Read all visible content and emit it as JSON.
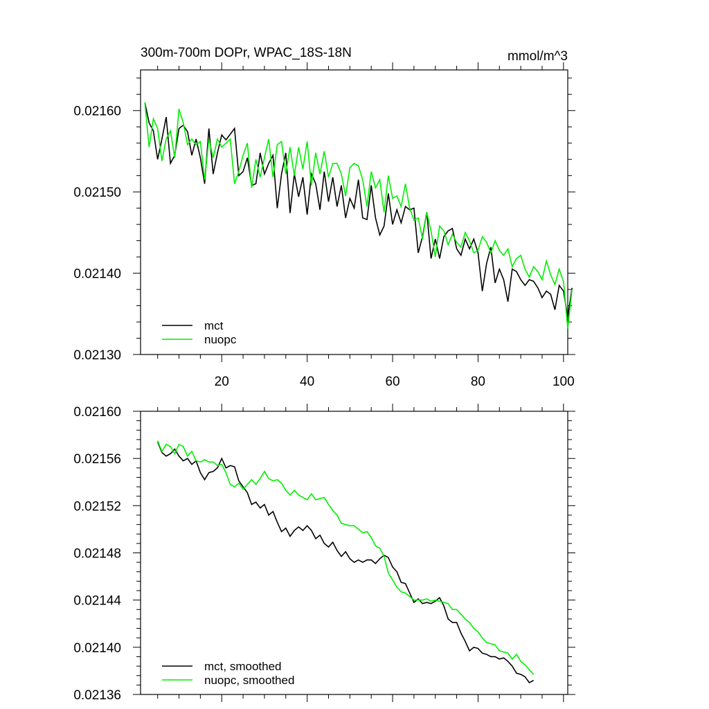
{
  "figure": {
    "title_left": "300m-700m DOPr, WPAC_18S-18N",
    "title_right": "mmol/m^3"
  },
  "colors": {
    "mct": "#000000",
    "nuopc": "#00ee00"
  },
  "chart_data": [
    {
      "type": "line",
      "title": "300m-700m DOPr, WPAC_18S-18N",
      "units": "mmol/m^3",
      "xlim": [
        1,
        101
      ],
      "ylim": [
        0.0213,
        0.02165
      ],
      "xticks": [
        20,
        40,
        60,
        80,
        100
      ],
      "xtick_labels": [
        "20",
        "40",
        "60",
        "80",
        "100"
      ],
      "yticks": [
        0.0213,
        0.0214,
        0.0215,
        0.0216
      ],
      "ytick_labels": [
        "0.02130",
        "0.02140",
        "0.02150",
        "0.02160"
      ],
      "legend_position": "bottom-left",
      "x_start": 2,
      "series": [
        {
          "name": "mct",
          "color": "#000000",
          "values": [
            0.02161,
            0.021585,
            0.021575,
            0.02154,
            0.021565,
            0.021592,
            0.021535,
            0.021545,
            0.021578,
            0.021582,
            0.021574,
            0.021545,
            0.021565,
            0.021542,
            0.02151,
            0.021578,
            0.021522,
            0.021548,
            0.02157,
            0.021564,
            0.021571,
            0.021578,
            0.02152,
            0.021525,
            0.021542,
            0.021508,
            0.02151,
            0.021548,
            0.021522,
            0.021535,
            0.021545,
            0.02148,
            0.021522,
            0.021548,
            0.021474,
            0.021522,
            0.021494,
            0.021518,
            0.021472,
            0.021522,
            0.02151,
            0.021478,
            0.021525,
            0.021488,
            0.021518,
            0.021482,
            0.021508,
            0.021468,
            0.021492,
            0.02148,
            0.021515,
            0.021468,
            0.021466,
            0.021508,
            0.021468,
            0.021447,
            0.021458,
            0.021498,
            0.02146,
            0.021478,
            0.021462,
            0.021482,
            0.021478,
            0.02148,
            0.021425,
            0.021445,
            0.021475,
            0.021418,
            0.021442,
            0.021418,
            0.021445,
            0.021452,
            0.021455,
            0.02143,
            0.021422,
            0.021442,
            0.02143,
            0.021442,
            0.021425,
            0.021378,
            0.021412,
            0.021432,
            0.021388,
            0.021405,
            0.021392,
            0.021365,
            0.021405,
            0.021402,
            0.021392,
            0.021385,
            0.021392,
            0.02139,
            0.021382,
            0.02137,
            0.021378,
            0.021374,
            0.021355,
            0.021385,
            0.021378,
            0.021346,
            0.021382
          ]
        },
        {
          "name": "nuopc",
          "color": "#00ee00",
          "values": [
            0.02161,
            0.021555,
            0.02159,
            0.021578,
            0.021538,
            0.021565,
            0.021575,
            0.021542,
            0.021602,
            0.021585,
            0.021558,
            0.021565,
            0.021558,
            0.021562,
            0.021515,
            0.021565,
            0.021542,
            0.021565,
            0.021555,
            0.02156,
            0.021565,
            0.02151,
            0.021525,
            0.021545,
            0.02156,
            0.021505,
            0.02154,
            0.021518,
            0.021542,
            0.021565,
            0.021518,
            0.021558,
            0.021562,
            0.021522,
            0.021555,
            0.02152,
            0.021555,
            0.021528,
            0.021562,
            0.021508,
            0.021548,
            0.021522,
            0.02155,
            0.021518,
            0.021535,
            0.021535,
            0.021522,
            0.021495,
            0.02153,
            0.021535,
            0.021532,
            0.021515,
            0.021482,
            0.021525,
            0.021505,
            0.021515,
            0.021475,
            0.02152,
            0.021492,
            0.021495,
            0.021482,
            0.02151,
            0.02148,
            0.021465,
            0.021468,
            0.021442,
            0.021475,
            0.021452,
            0.02142,
            0.021458,
            0.021452,
            0.021435,
            0.021448,
            0.021438,
            0.021432,
            0.02145,
            0.02144,
            0.021425,
            0.021428,
            0.021445,
            0.021438,
            0.021425,
            0.02144,
            0.021428,
            0.021422,
            0.02143,
            0.021408,
            0.021418,
            0.021422,
            0.021405,
            0.021395,
            0.021408,
            0.021402,
            0.021392,
            0.021415,
            0.021398,
            0.021386,
            0.021405,
            0.02139,
            0.021332,
            0.02138
          ]
        }
      ]
    },
    {
      "type": "line",
      "title": "",
      "xlim": [
        1,
        101
      ],
      "ylim": [
        0.02136,
        0.0216
      ],
      "xticks": [
        20,
        40,
        60,
        80,
        100
      ],
      "xtick_labels": [],
      "yticks": [
        0.02136,
        0.0214,
        0.02144,
        0.02148,
        0.02152,
        0.02156,
        0.0216
      ],
      "ytick_labels": [
        "0.02136",
        "0.02140",
        "0.02144",
        "0.02148",
        "0.02152",
        "0.02156",
        "0.02160"
      ],
      "legend_position": "bottom-left",
      "x_start": 5,
      "series": [
        {
          "name": "mct, smoothed",
          "color": "#000000",
          "values": [
            0.021574,
            0.021565,
            0.021562,
            0.021564,
            0.021568,
            0.021562,
            0.021558,
            0.02156,
            0.021555,
            0.021558,
            0.021548,
            0.021542,
            0.021548,
            0.021549,
            0.021552,
            0.02156,
            0.021552,
            0.021554,
            0.021553,
            0.021541,
            0.021536,
            0.021531,
            0.021521,
            0.021523,
            0.021518,
            0.021521,
            0.021512,
            0.021515,
            0.021506,
            0.021498,
            0.021501,
            0.021494,
            0.021499,
            0.021502,
            0.021499,
            0.021503,
            0.021499,
            0.021492,
            0.021495,
            0.021488,
            0.021485,
            0.021489,
            0.021482,
            0.021477,
            0.021481,
            0.021475,
            0.021472,
            0.021474,
            0.021472,
            0.021474,
            0.021474,
            0.021471,
            0.021475,
            0.021478,
            0.021476,
            0.021468,
            0.021464,
            0.021455,
            0.021454,
            0.021446,
            0.021438,
            0.021441,
            0.021437,
            0.021438,
            0.021437,
            0.021439,
            0.021442,
            0.021435,
            0.021424,
            0.021421,
            0.021421,
            0.021412,
            0.021405,
            0.021397,
            0.0214,
            0.021399,
            0.021395,
            0.021394,
            0.021392,
            0.021392,
            0.02139,
            0.021391,
            0.021388,
            0.021384,
            0.021378,
            0.021377,
            0.021375,
            0.02137,
            0.021372
          ]
        },
        {
          "name": "nuopc, smoothed",
          "color": "#00ee00",
          "values": [
            0.021575,
            0.021566,
            0.021572,
            0.02157,
            0.021564,
            0.021572,
            0.02157,
            0.021562,
            0.021566,
            0.021558,
            0.021557,
            0.021559,
            0.021557,
            0.021557,
            0.021554,
            0.021555,
            0.021548,
            0.021538,
            0.021536,
            0.021539,
            0.021534,
            0.021538,
            0.021542,
            0.021538,
            0.021543,
            0.021549,
            0.021543,
            0.021541,
            0.021542,
            0.021539,
            0.021533,
            0.021529,
            0.021533,
            0.021529,
            0.021527,
            0.021525,
            0.02153,
            0.021525,
            0.021526,
            0.021527,
            0.021521,
            0.021516,
            0.021512,
            0.021505,
            0.021504,
            0.021503,
            0.021503,
            0.0215,
            0.021497,
            0.021498,
            0.021493,
            0.021486,
            0.021484,
            0.021477,
            0.021463,
            0.021457,
            0.021451,
            0.021447,
            0.021446,
            0.021443,
            0.02144,
            0.02144,
            0.02144,
            0.021441,
            0.021439,
            0.02144,
            0.021439,
            0.021438,
            0.021437,
            0.021432,
            0.021432,
            0.021428,
            0.021424,
            0.021421,
            0.021416,
            0.021413,
            0.021408,
            0.021404,
            0.021403,
            0.021402,
            0.021397,
            0.021396,
            0.021395,
            0.02139,
            0.021394,
            0.021388,
            0.021385,
            0.021381,
            0.021377
          ]
        }
      ]
    }
  ]
}
